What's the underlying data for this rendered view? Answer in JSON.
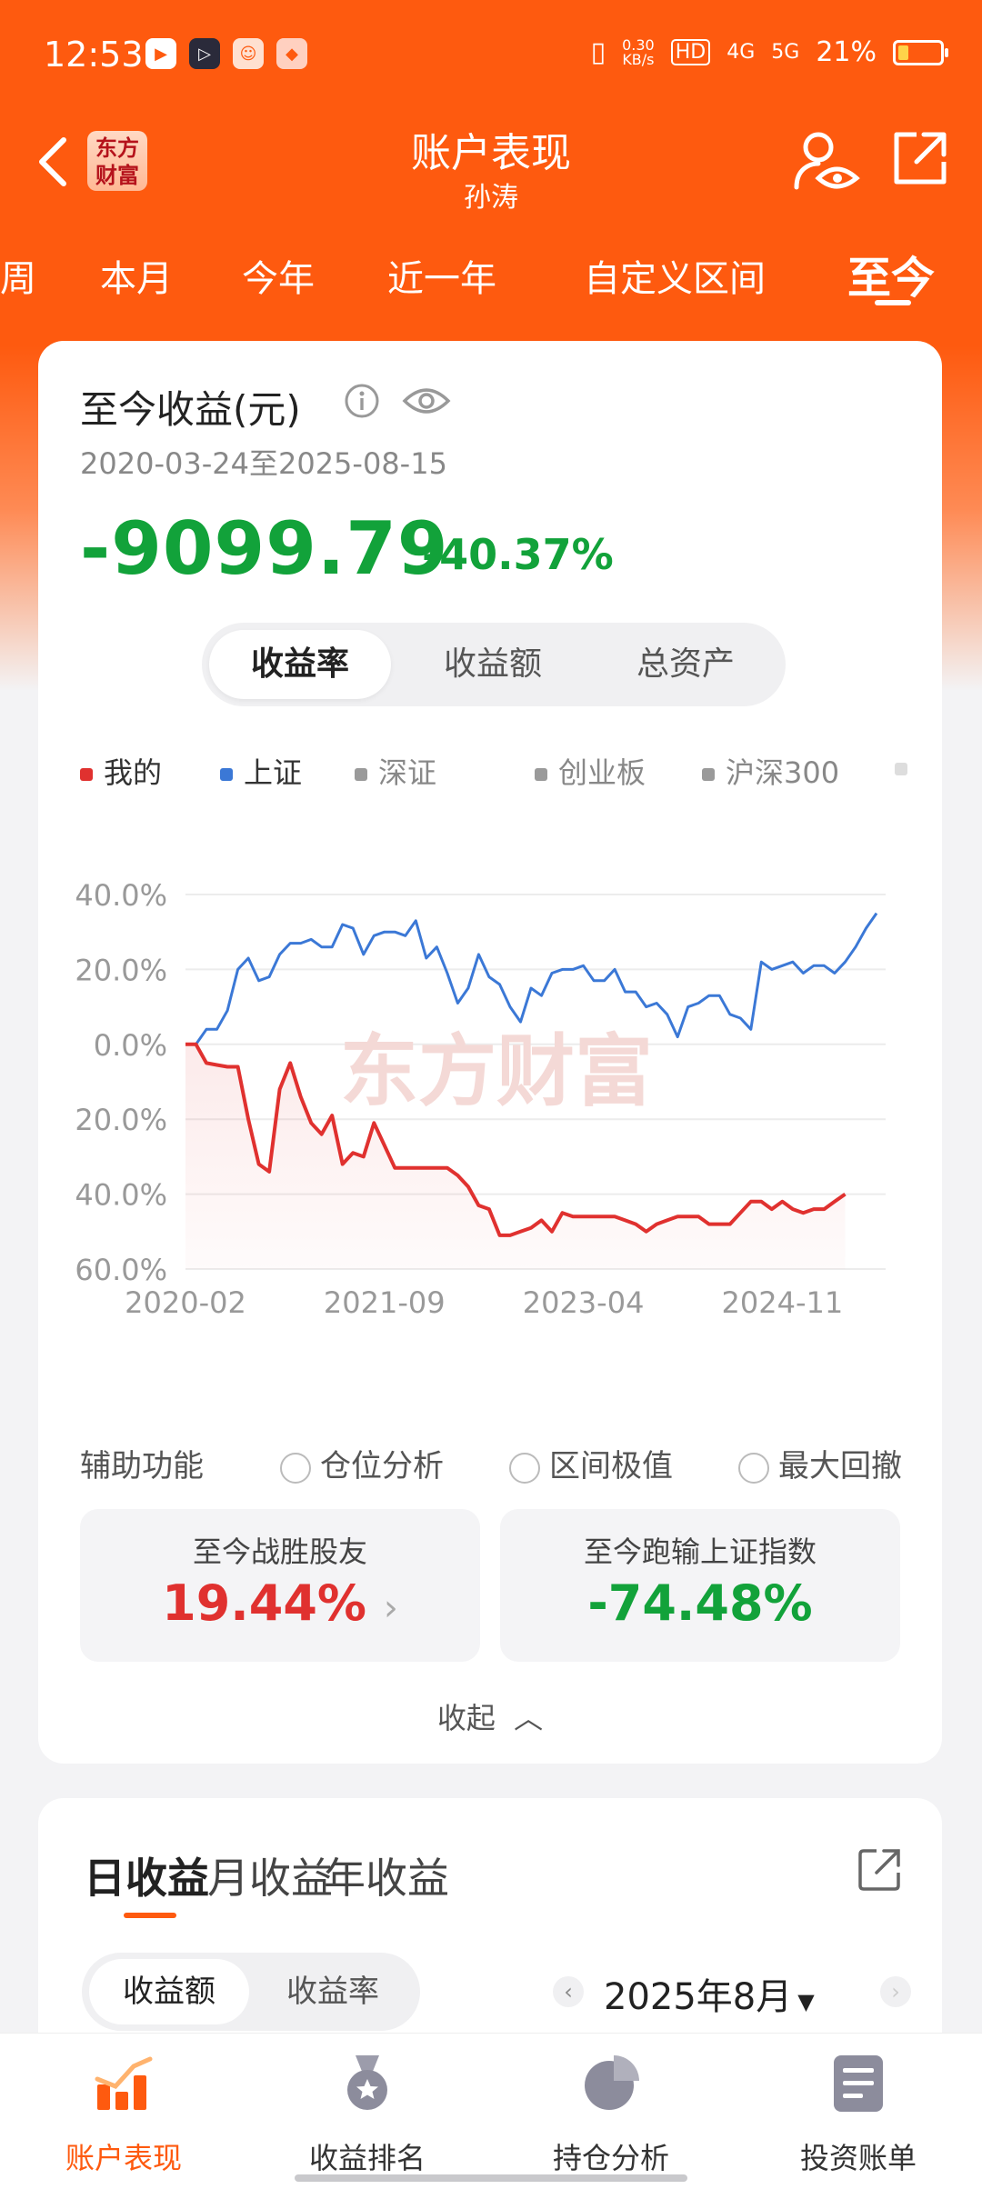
{
  "status_bar": {
    "time": "12:53",
    "net_speed_top": "0.30",
    "net_speed_bottom": "KB/s",
    "hd": "HD",
    "net1": "4G",
    "net2": "5G",
    "battery": "21%",
    "battery_level": 0.21
  },
  "header": {
    "logo_text": "东方财富",
    "title": "账户表现",
    "subtitle": "孙涛"
  },
  "periods": [
    "周",
    "本月",
    "今年",
    "近一年",
    "自定义区间",
    "至今"
  ],
  "summary": {
    "title": "至今收益(元)",
    "date_range": "2020-03-24至2025-08-15",
    "amount": "-9099.79",
    "percent": "-40.37%",
    "segments": [
      "收益率",
      "收益额",
      "总资产"
    ]
  },
  "legend": [
    {
      "name": "我的",
      "color": "#e0312f"
    },
    {
      "name": "上证",
      "color": "#3b78d6"
    },
    {
      "name": "深证",
      "color": "#9a9a9a"
    },
    {
      "name": "创业板",
      "color": "#9a9a9a"
    },
    {
      "name": "沪深300",
      "color": "#9a9a9a"
    }
  ],
  "watermark": "东方财富",
  "chart_data": {
    "type": "line",
    "x_ticks": [
      "2020-02",
      "2021-09",
      "2023-04",
      "2024-11"
    ],
    "y_ticks": [
      "40.0%",
      "20.0%",
      "0.0%",
      "-20.0%",
      "-40.0%",
      "-60.0%"
    ],
    "ylim": [
      -60,
      40
    ],
    "series": [
      {
        "name": "我的",
        "color": "#e0312f",
        "points": [
          [
            0,
            0
          ],
          [
            2,
            0
          ],
          [
            4,
            -5
          ],
          [
            6,
            -5.5
          ],
          [
            8,
            -6
          ],
          [
            10,
            -6
          ],
          [
            12,
            -20
          ],
          [
            14,
            -32
          ],
          [
            16,
            -34
          ],
          [
            18,
            -12
          ],
          [
            20,
            -5
          ],
          [
            22,
            -14
          ],
          [
            24,
            -21
          ],
          [
            26,
            -24
          ],
          [
            28,
            -19
          ],
          [
            30,
            -32
          ],
          [
            32,
            -29
          ],
          [
            34,
            -30
          ],
          [
            36,
            -21
          ],
          [
            38,
            -27
          ],
          [
            40,
            -33
          ],
          [
            42,
            -33
          ],
          [
            44,
            -33
          ],
          [
            46,
            -33
          ],
          [
            48,
            -33
          ],
          [
            50,
            -33
          ],
          [
            52,
            -35
          ],
          [
            54,
            -38
          ],
          [
            56,
            -43
          ],
          [
            58,
            -44
          ],
          [
            60,
            -51
          ],
          [
            62,
            -51
          ],
          [
            64,
            -50
          ],
          [
            66,
            -49
          ],
          [
            68,
            -47
          ],
          [
            70,
            -50
          ],
          [
            72,
            -45
          ],
          [
            74,
            -46
          ],
          [
            76,
            -46
          ],
          [
            78,
            -46
          ],
          [
            80,
            -46
          ],
          [
            82,
            -46
          ],
          [
            84,
            -47
          ],
          [
            86,
            -48
          ],
          [
            88,
            -50
          ],
          [
            90,
            -48
          ],
          [
            92,
            -47
          ],
          [
            94,
            -46
          ],
          [
            96,
            -46
          ],
          [
            98,
            -46
          ],
          [
            100,
            -48
          ],
          [
            102,
            -48
          ],
          [
            104,
            -48
          ],
          [
            106,
            -45
          ],
          [
            108,
            -42
          ],
          [
            110,
            -42
          ],
          [
            112,
            -44
          ],
          [
            114,
            -42
          ],
          [
            116,
            -44
          ],
          [
            118,
            -45
          ],
          [
            120,
            -44
          ],
          [
            122,
            -44
          ],
          [
            124,
            -42
          ],
          [
            126,
            -40
          ]
        ]
      },
      {
        "name": "上证",
        "color": "#3b78d6",
        "points": [
          [
            0,
            0
          ],
          [
            2,
            0
          ],
          [
            4,
            4
          ],
          [
            6,
            4
          ],
          [
            8,
            9
          ],
          [
            10,
            20
          ],
          [
            12,
            23
          ],
          [
            14,
            17
          ],
          [
            16,
            18
          ],
          [
            18,
            24
          ],
          [
            20,
            27
          ],
          [
            22,
            27
          ],
          [
            24,
            28
          ],
          [
            26,
            26
          ],
          [
            28,
            26
          ],
          [
            30,
            32
          ],
          [
            32,
            31
          ],
          [
            34,
            24
          ],
          [
            36,
            29
          ],
          [
            38,
            30
          ],
          [
            40,
            30
          ],
          [
            42,
            29
          ],
          [
            44,
            33
          ],
          [
            46,
            23
          ],
          [
            48,
            26
          ],
          [
            50,
            19
          ],
          [
            52,
            11
          ],
          [
            54,
            15
          ],
          [
            56,
            24
          ],
          [
            58,
            18
          ],
          [
            60,
            16
          ],
          [
            62,
            10
          ],
          [
            64,
            6
          ],
          [
            66,
            15
          ],
          [
            68,
            13
          ],
          [
            70,
            19
          ],
          [
            72,
            20
          ],
          [
            74,
            20
          ],
          [
            76,
            21
          ],
          [
            78,
            17
          ],
          [
            80,
            17
          ],
          [
            82,
            20
          ],
          [
            84,
            14
          ],
          [
            86,
            14
          ],
          [
            88,
            10
          ],
          [
            90,
            11
          ],
          [
            92,
            8
          ],
          [
            94,
            2
          ],
          [
            96,
            10
          ],
          [
            98,
            11
          ],
          [
            100,
            13
          ],
          [
            102,
            13
          ],
          [
            104,
            8
          ],
          [
            106,
            7
          ],
          [
            108,
            4
          ],
          [
            110,
            22
          ],
          [
            112,
            20
          ],
          [
            114,
            21
          ],
          [
            116,
            22
          ],
          [
            118,
            19
          ],
          [
            120,
            21
          ],
          [
            122,
            21
          ],
          [
            124,
            19
          ],
          [
            126,
            22
          ],
          [
            128,
            26
          ],
          [
            130,
            31
          ],
          [
            132,
            35
          ]
        ]
      }
    ]
  },
  "aux": {
    "label": "辅助功能",
    "options": [
      "仓位分析",
      "区间极值",
      "最大回撤"
    ]
  },
  "stats": {
    "beat_label": "至今战胜股友",
    "beat_value": "19.44%",
    "vs_label": "至今跑输上证指数",
    "vs_value": "-74.48%"
  },
  "collapse_label": "收起",
  "daily": {
    "tabs": [
      "日收益",
      "月收益",
      "年收益"
    ],
    "segments": [
      "收益额",
      "收益率"
    ],
    "month": "2025年8月"
  },
  "bottom_nav": [
    "账户表现",
    "收益排名",
    "持仓分析",
    "投资账单"
  ]
}
